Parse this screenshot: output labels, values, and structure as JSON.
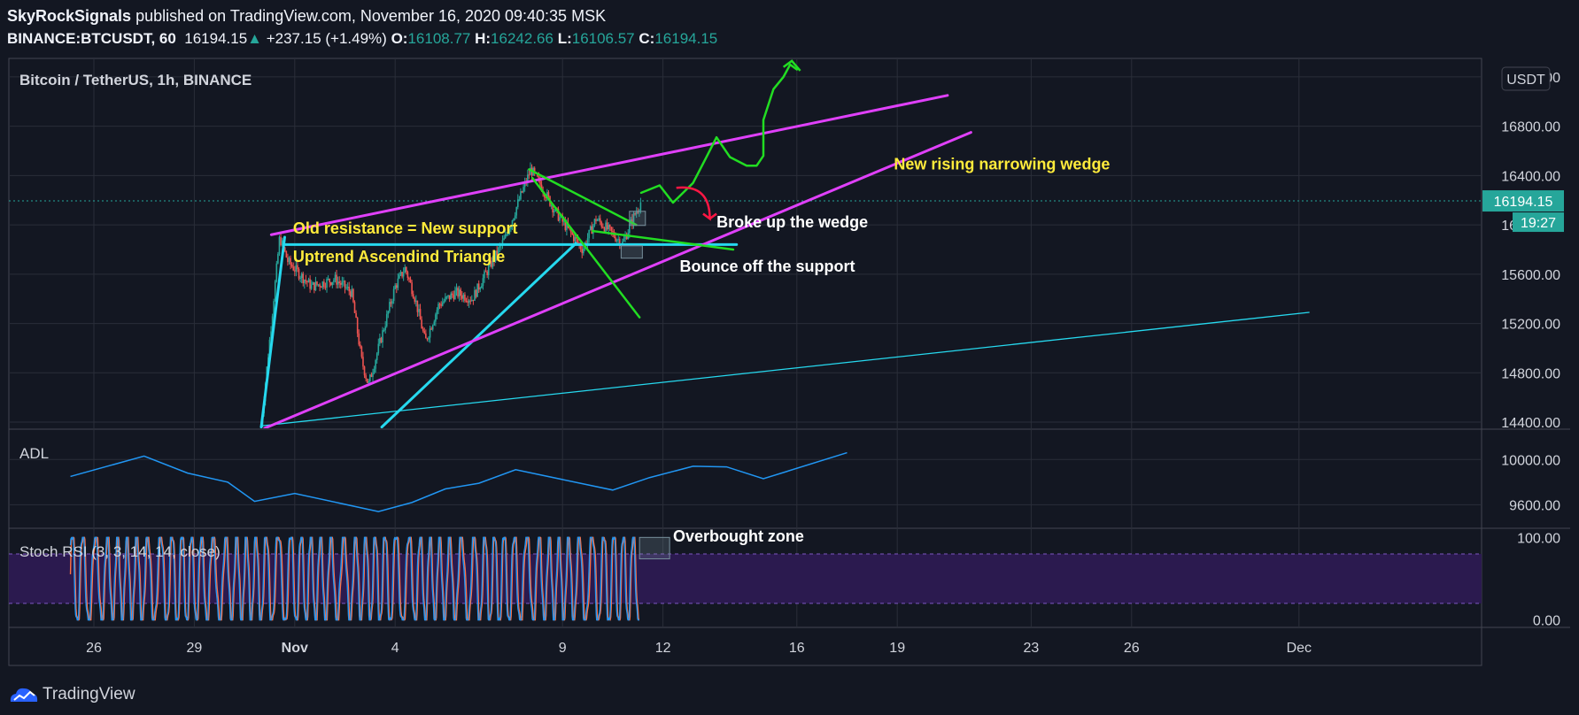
{
  "header": {
    "author": "SkyRockSignals",
    "published": "published on TradingView.com, November 16, 2020 09:40:35 MSK",
    "symbol": "BINANCE:BTCUSDT, 60",
    "last": "16194.15",
    "up_arrow": "▲",
    "change": "+237.15 (+1.49%)",
    "o_label": "O:",
    "o_value": "16108.77",
    "h_label": "H:",
    "h_value": "16242.66",
    "l_label": "L:",
    "l_value": "16106.57",
    "c_label": "C:",
    "c_value": "16194.15"
  },
  "footer": {
    "brand": "TradingView",
    "logo_icon": "tradingview-logo-icon"
  },
  "colors": {
    "background": "#131722",
    "grid": "#2a2e39",
    "text": "#d1d4dc",
    "up": "#26a69a",
    "down": "#ef5350",
    "magenta": "#e040fb",
    "cyan": "#26d9ef",
    "green": "#22dd22",
    "yellow": "#ffeb3b",
    "adl": "#2196f3",
    "stoch_k": "#2196f3",
    "stoch_d": "#ff7043",
    "stoch_band": "#2b1a4f"
  },
  "chart_data": [
    {
      "type": "candlestick",
      "title": "Bitcoin / TetherUS, 1h, BINANCE",
      "currency": "USDT",
      "price_tag": "16194.15",
      "countdown": "19:27",
      "x_ticks": [
        "26",
        "29",
        "Nov",
        "4",
        "9",
        "12",
        "16",
        "19",
        "23",
        "26",
        "Dec"
      ],
      "y_ticks": [
        "14400.00",
        "14800.00",
        "15200.00",
        "15600.00",
        "16000.00",
        "16400.00",
        "16800.00",
        "17200.00"
      ],
      "ylim": [
        14350,
        17350
      ],
      "candle_path": [
        [
          5.0,
          14380
        ],
        [
          5.3,
          15200
        ],
        [
          5.55,
          15900
        ],
        [
          5.8,
          15700
        ],
        [
          6.5,
          15500
        ],
        [
          7.2,
          15560
        ],
        [
          7.7,
          15450
        ],
        [
          8.0,
          14900
        ],
        [
          8.2,
          14700
        ],
        [
          8.6,
          15100
        ],
        [
          9.0,
          15500
        ],
        [
          9.3,
          15650
        ],
        [
          9.6,
          15400
        ],
        [
          9.9,
          15050
        ],
        [
          10.3,
          15350
        ],
        [
          10.8,
          15450
        ],
        [
          11.3,
          15400
        ],
        [
          11.8,
          15650
        ],
        [
          12.3,
          15900
        ],
        [
          12.7,
          16200
        ],
        [
          13.05,
          16450
        ],
        [
          13.4,
          16300
        ],
        [
          13.8,
          16100
        ],
        [
          14.2,
          15950
        ],
        [
          14.6,
          15800
        ],
        [
          15.0,
          16050
        ],
        [
          15.4,
          15950
        ],
        [
          15.8,
          15850
        ],
        [
          16.1,
          16050
        ],
        [
          16.35,
          16194
        ]
      ],
      "annotations": [
        {
          "text": "Old resistance = New support",
          "color": "#ffeb3b"
        },
        {
          "text": "Uptrend Ascendind Triangle",
          "color": "#ffeb3b"
        },
        {
          "text": "New rising narrowing wedge",
          "color": "#ffeb3b"
        },
        {
          "text": "Broke up the wedge",
          "color": "#ffffff"
        },
        {
          "text": "Bounce off the support",
          "color": "#ffffff"
        }
      ]
    },
    {
      "type": "line",
      "title": "ADL",
      "y_ticks": [
        "9600.00",
        "10000.00"
      ],
      "ylim": [
        9400,
        10260
      ],
      "points": [
        [
          -0.7,
          9850
        ],
        [
          1.5,
          10030
        ],
        [
          2.8,
          9880
        ],
        [
          4.0,
          9800
        ],
        [
          4.8,
          9630
        ],
        [
          6.0,
          9700
        ],
        [
          8.5,
          9540
        ],
        [
          9.5,
          9620
        ],
        [
          10.5,
          9740
        ],
        [
          11.5,
          9790
        ],
        [
          12.6,
          9910
        ],
        [
          15.5,
          9730
        ],
        [
          16.6,
          9840
        ],
        [
          17.9,
          9940
        ],
        [
          18.9,
          9935
        ],
        [
          20.0,
          9830
        ],
        [
          22.5,
          10060
        ]
      ]
    },
    {
      "type": "line",
      "title": "Stoch RSI (3, 3, 14, 14, close)",
      "y_ticks": [
        "100.00",
        "0.00"
      ],
      "ylim": [
        -8,
        110
      ],
      "levels": [
        80,
        20
      ],
      "start_day": -0.7,
      "end_day": 16.3,
      "period_days": 0.34,
      "annotation": "Overbought zone"
    }
  ]
}
